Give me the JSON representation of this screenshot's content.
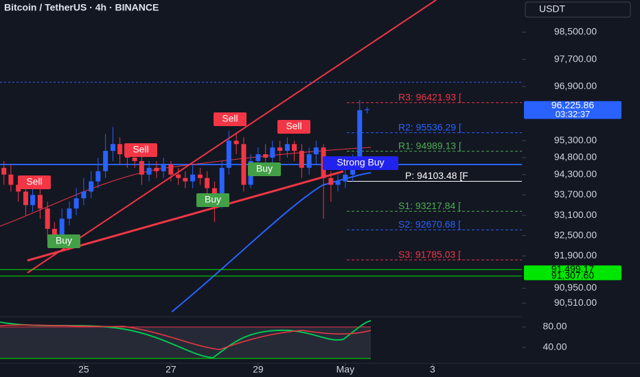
{
  "header": {
    "title": "Bitcoin / TetherUS · 4h · BINANCE",
    "currency": "USDT"
  },
  "chart_data": [
    {
      "type": "candlestick",
      "x": [
        23.17,
        23.33,
        23.5,
        23.67,
        23.83,
        24,
        24.17,
        24.33,
        24.5,
        24.67,
        24.83,
        25,
        25.17,
        25.33,
        25.5,
        25.67,
        25.83,
        26,
        26.17,
        26.33,
        26.5,
        26.67,
        26.83,
        27,
        27.17,
        27.33,
        27.5,
        27.67,
        27.83,
        28,
        28.17,
        28.33,
        28.5,
        28.67,
        28.83,
        29,
        29.17,
        29.33,
        29.5,
        29.67,
        29.83,
        30,
        30.17,
        30.33,
        30.5,
        30.67,
        30.83,
        31,
        31.17,
        31.33,
        31.5
      ],
      "open": [
        94500,
        94300,
        94000,
        93800,
        93400,
        93700,
        93300,
        92700,
        92500,
        93000,
        93300,
        93600,
        93800,
        94100,
        94400,
        95000,
        95200,
        94900,
        94800,
        94700,
        94300,
        94500,
        94400,
        94600,
        94300,
        94200,
        94100,
        94300,
        94200,
        93900,
        93500,
        94500,
        95300,
        95200,
        94000,
        94700,
        94900,
        94800,
        95100,
        95000,
        95200,
        95000,
        94500,
        94900,
        95100,
        94200,
        94000,
        94100,
        94300,
        94600,
        96200
      ],
      "high": [
        94700,
        94600,
        94200,
        94000,
        94000,
        93900,
        93500,
        92900,
        93300,
        93500,
        93900,
        94200,
        94400,
        94800,
        95500,
        95700,
        95400,
        95100,
        95000,
        94900,
        94700,
        94700,
        94800,
        94700,
        94500,
        94400,
        94600,
        94500,
        94400,
        94100,
        94700,
        95600,
        95500,
        95400,
        94900,
        95100,
        95200,
        95300,
        95300,
        95400,
        95300,
        95200,
        95100,
        95300,
        95200,
        94400,
        94300,
        94500,
        94900,
        96500,
        96300
      ],
      "low": [
        94000,
        93800,
        93500,
        93100,
        93200,
        93000,
        92400,
        92300,
        92400,
        92800,
        93100,
        93400,
        93600,
        93900,
        94200,
        94700,
        94600,
        94500,
        94500,
        94000,
        94100,
        94200,
        94200,
        94100,
        94000,
        93900,
        93900,
        94000,
        93700,
        92900,
        93300,
        94300,
        94900,
        93800,
        93900,
        94500,
        94500,
        94600,
        94700,
        94800,
        94700,
        94200,
        94300,
        94600,
        93000,
        93500,
        93800,
        93900,
        94100,
        94500,
        96100
      ],
      "close": [
        94300,
        94000,
        93800,
        93400,
        93700,
        93300,
        92700,
        92500,
        93000,
        93300,
        93600,
        93800,
        94100,
        94400,
        95000,
        95200,
        94900,
        94800,
        94700,
        94300,
        94500,
        94400,
        94600,
        94300,
        94200,
        94100,
        94300,
        94200,
        93900,
        93500,
        94500,
        95300,
        95200,
        94000,
        94700,
        94900,
        94800,
        95100,
        95000,
        95200,
        95000,
        94500,
        94900,
        95100,
        94200,
        94000,
        94100,
        94300,
        94600,
        96200,
        96225.86
      ],
      "up_color": "#2962ff",
      "down_color": "#f23645",
      "xlim": [
        23.08,
        35.05
      ],
      "xticks": [
        25,
        27,
        29,
        {
          "value": 31,
          "label": "May"
        },
        {
          "value": 33,
          "label": "3"
        }
      ],
      "ylim": [
        90150,
        99450
      ],
      "yticks": [
        {
          "value": 98500,
          "label": "98,500.00"
        },
        {
          "value": 97700,
          "label": "97,700.00"
        },
        {
          "value": 96900,
          "label": "96,900.00"
        },
        {
          "value": 95300,
          "label": "95,300.00"
        },
        {
          "value": 94800,
          "label": "94,800.00"
        },
        {
          "value": 94300,
          "label": "94,300.00"
        },
        {
          "value": 93700,
          "label": "93,700.00"
        },
        {
          "value": 93100,
          "label": "93,100.00"
        },
        {
          "value": 92500,
          "label": "92,500.00"
        },
        {
          "value": 91900,
          "label": "91,900.00"
        },
        {
          "value": 90950,
          "label": "90,950.00"
        },
        {
          "value": 90510,
          "label": "90,510.00"
        }
      ],
      "pivots": [
        {
          "label": "R3: 96421.93 [",
          "value": 96421.93,
          "color": "#f23645"
        },
        {
          "label": "R2: 95536.29 [",
          "value": 95536.29,
          "color": "#2962ff"
        },
        {
          "label": "R1: 94989.13 [",
          "value": 94989.13,
          "color": "#4caf50"
        },
        {
          "label": "P: 94103.48 [F",
          "value": 94103.48,
          "color": "#ffffff"
        },
        {
          "label": "S1: 93217.84 [",
          "value": 93217.84,
          "color": "#4caf50"
        },
        {
          "label": "S2: 92670.68 [",
          "value": 92670.68,
          "color": "#2962ff"
        },
        {
          "label": "S3: 91785.03 [",
          "value": 91785.03,
          "color": "#f23645"
        }
      ],
      "price_labels": [
        {
          "label": "96,225.86",
          "value": 96225.86,
          "color": "#2962ff"
        },
        {
          "label": "91,499.17",
          "value": 91499.17,
          "color": "#00e600"
        },
        {
          "label": "91,307.60",
          "value": 91307.6,
          "color": "#00e600"
        }
      ],
      "countdown": "03:32:37",
      "signals": [
        "Sell",
        "Sell",
        "Sell",
        "Sell",
        "Buy",
        "Buy",
        "Buy",
        "Strong Buy"
      ]
    },
    {
      "type": "line",
      "ylim": [
        16,
        100
      ],
      "yticks": [
        {
          "value": 80,
          "label": "80.00"
        },
        {
          "value": 40,
          "label": "40.00"
        }
      ]
    }
  ]
}
